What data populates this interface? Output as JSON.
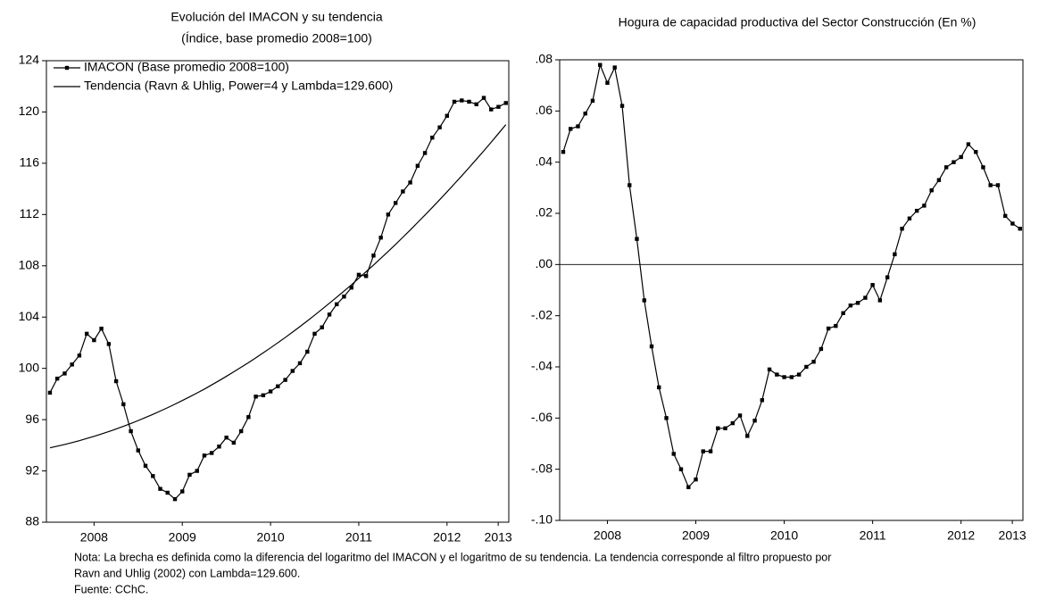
{
  "chart_data": [
    {
      "type": "line",
      "title": "Evolución del IMACON y su tendencia",
      "subtitle": "(Índice, base promedio 2008=100)",
      "x": [
        2008,
        2008.083,
        2008.167,
        2008.25,
        2008.333,
        2008.417,
        2008.5,
        2008.583,
        2008.667,
        2008.75,
        2008.833,
        2008.917,
        2009,
        2009.083,
        2009.167,
        2009.25,
        2009.333,
        2009.417,
        2009.5,
        2009.583,
        2009.667,
        2009.75,
        2009.833,
        2009.917,
        2010,
        2010.083,
        2010.167,
        2010.25,
        2010.333,
        2010.417,
        2010.5,
        2010.583,
        2010.667,
        2010.75,
        2010.833,
        2010.917,
        2011,
        2011.083,
        2011.167,
        2011.25,
        2011.333,
        2011.417,
        2011.5,
        2011.583,
        2011.667,
        2011.75,
        2011.833,
        2011.917,
        2012,
        2012.083,
        2012.167,
        2012.25,
        2012.333,
        2012.417,
        2012.5,
        2012.583,
        2012.667,
        2012.75,
        2012.833,
        2012.917,
        2013,
        2013.083,
        2013.167
      ],
      "xlim": [
        2007.96,
        2013.2
      ],
      "xticks": [
        {
          "value": 2008.5,
          "label": "2008"
        },
        {
          "value": 2009.5,
          "label": "2009"
        },
        {
          "value": 2010.5,
          "label": "2010"
        },
        {
          "value": 2011.5,
          "label": "2011"
        },
        {
          "value": 2012.5,
          "label": "2012"
        },
        {
          "value": 2013.08,
          "label": "2013"
        }
      ],
      "ylim": [
        88,
        124
      ],
      "yticks": [
        88,
        92,
        96,
        100,
        104,
        108,
        112,
        116,
        120,
        124
      ],
      "legend": "top-left",
      "series": [
        {
          "name": "IMACON (Base promedio 2008=100)",
          "color": "#000000",
          "markers": true,
          "values": [
            98.1,
            99.2,
            99.6,
            100.3,
            101.0,
            102.7,
            102.2,
            103.1,
            101.9,
            99.0,
            97.2,
            95.1,
            93.6,
            92.4,
            91.6,
            90.6,
            90.3,
            89.8,
            90.4,
            91.7,
            92.0,
            93.2,
            93.4,
            93.9,
            94.6,
            94.2,
            95.1,
            96.2,
            97.8,
            97.9,
            98.2,
            98.6,
            99.1,
            99.8,
            100.4,
            101.3,
            102.7,
            103.2,
            104.2,
            105.0,
            105.6,
            106.3,
            107.3,
            107.2,
            108.8,
            110.2,
            112.0,
            112.9,
            113.8,
            114.5,
            115.8,
            116.8,
            118.0,
            118.8,
            119.7,
            120.8,
            120.9,
            120.8,
            120.6,
            121.1,
            120.2,
            120.4,
            120.7
          ]
        },
        {
          "name": "Tendencia (Ravn & Uhlig, Power=4 y Lambda=129.600)",
          "color": "#000000",
          "markers": false,
          "values": [
            93.8,
            93.93,
            94.06,
            94.21,
            94.36,
            94.53,
            94.7,
            94.88,
            95.07,
            95.27,
            95.48,
            95.7,
            95.93,
            96.17,
            96.41,
            96.67,
            96.93,
            97.21,
            97.49,
            97.78,
            98.08,
            98.38,
            98.71,
            99.04,
            99.38,
            99.73,
            100.09,
            100.45,
            100.82,
            101.21,
            101.6,
            102.0,
            102.41,
            102.83,
            103.26,
            103.7,
            104.15,
            104.61,
            105.08,
            105.55,
            106.03,
            106.52,
            107.03,
            107.54,
            108.06,
            108.59,
            109.12,
            109.67,
            110.23,
            110.79,
            111.38,
            111.96,
            112.55,
            113.16,
            113.77,
            114.39,
            115.02,
            115.66,
            116.31,
            116.97,
            117.64,
            118.32,
            119.01
          ]
        }
      ]
    },
    {
      "type": "line",
      "title": "Hogura de capacidad productiva del Sector Construcción (En %)",
      "x": [
        2008,
        2008.083,
        2008.167,
        2008.25,
        2008.333,
        2008.417,
        2008.5,
        2008.583,
        2008.667,
        2008.75,
        2008.833,
        2008.917,
        2009,
        2009.083,
        2009.167,
        2009.25,
        2009.333,
        2009.417,
        2009.5,
        2009.583,
        2009.667,
        2009.75,
        2009.833,
        2009.917,
        2010,
        2010.083,
        2010.167,
        2010.25,
        2010.333,
        2010.417,
        2010.5,
        2010.583,
        2010.667,
        2010.75,
        2010.833,
        2010.917,
        2011,
        2011.083,
        2011.167,
        2011.25,
        2011.333,
        2011.417,
        2011.5,
        2011.583,
        2011.667,
        2011.75,
        2011.833,
        2011.917,
        2012,
        2012.083,
        2012.167,
        2012.25,
        2012.333,
        2012.417,
        2012.5,
        2012.583,
        2012.667,
        2012.75,
        2012.833,
        2012.917,
        2013,
        2013.083,
        2013.167
      ],
      "xlim": [
        2007.96,
        2013.2
      ],
      "xticks": [
        {
          "value": 2008.5,
          "label": "2008"
        },
        {
          "value": 2009.5,
          "label": "2009"
        },
        {
          "value": 2010.5,
          "label": "2010"
        },
        {
          "value": 2011.5,
          "label": "2011"
        },
        {
          "value": 2012.5,
          "label": "2012"
        },
        {
          "value": 2013.08,
          "label": "2013"
        }
      ],
      "ylim": [
        -0.1,
        0.08
      ],
      "yticks": [
        {
          "value": -0.1,
          "label": "-.10"
        },
        {
          "value": -0.08,
          "label": "-.08"
        },
        {
          "value": -0.06,
          "label": "-.06"
        },
        {
          "value": -0.04,
          "label": "-.04"
        },
        {
          "value": -0.02,
          "label": "-.02"
        },
        {
          "value": 0,
          "label": ".00"
        },
        {
          "value": 0.02,
          "label": ".02"
        },
        {
          "value": 0.04,
          "label": ".04"
        },
        {
          "value": 0.06,
          "label": ".06"
        },
        {
          "value": 0.08,
          "label": ".08"
        }
      ],
      "reference_line": 0,
      "series": [
        {
          "color": "#000000",
          "markers": true,
          "values": [
            0.044,
            0.053,
            0.054,
            0.059,
            0.064,
            0.078,
            0.071,
            0.077,
            0.062,
            0.031,
            0.01,
            -0.014,
            -0.032,
            -0.048,
            -0.06,
            -0.074,
            -0.08,
            -0.087,
            -0.084,
            -0.073,
            -0.073,
            -0.064,
            -0.064,
            -0.062,
            -0.059,
            -0.067,
            -0.061,
            -0.053,
            -0.041,
            -0.043,
            -0.044,
            -0.044,
            -0.043,
            -0.04,
            -0.038,
            -0.033,
            -0.025,
            -0.024,
            -0.019,
            -0.016,
            -0.015,
            -0.013,
            -0.008,
            -0.014,
            -0.005,
            0.004,
            0.014,
            0.018,
            0.021,
            0.023,
            0.029,
            0.033,
            0.038,
            0.04,
            0.042,
            0.047,
            0.044,
            0.038,
            0.031,
            0.031,
            0.019,
            0.016,
            0.014
          ]
        }
      ]
    }
  ],
  "note": [
    "Nota: La brecha es definida como la diferencia del logaritmo del IMACON y el logaritmo de su tendencia. La tendencia corresponde al filtro propuesto por",
    "Ravn and Uhlig (2002) con Lambda=129.600.",
    "Fuente: CChC."
  ]
}
